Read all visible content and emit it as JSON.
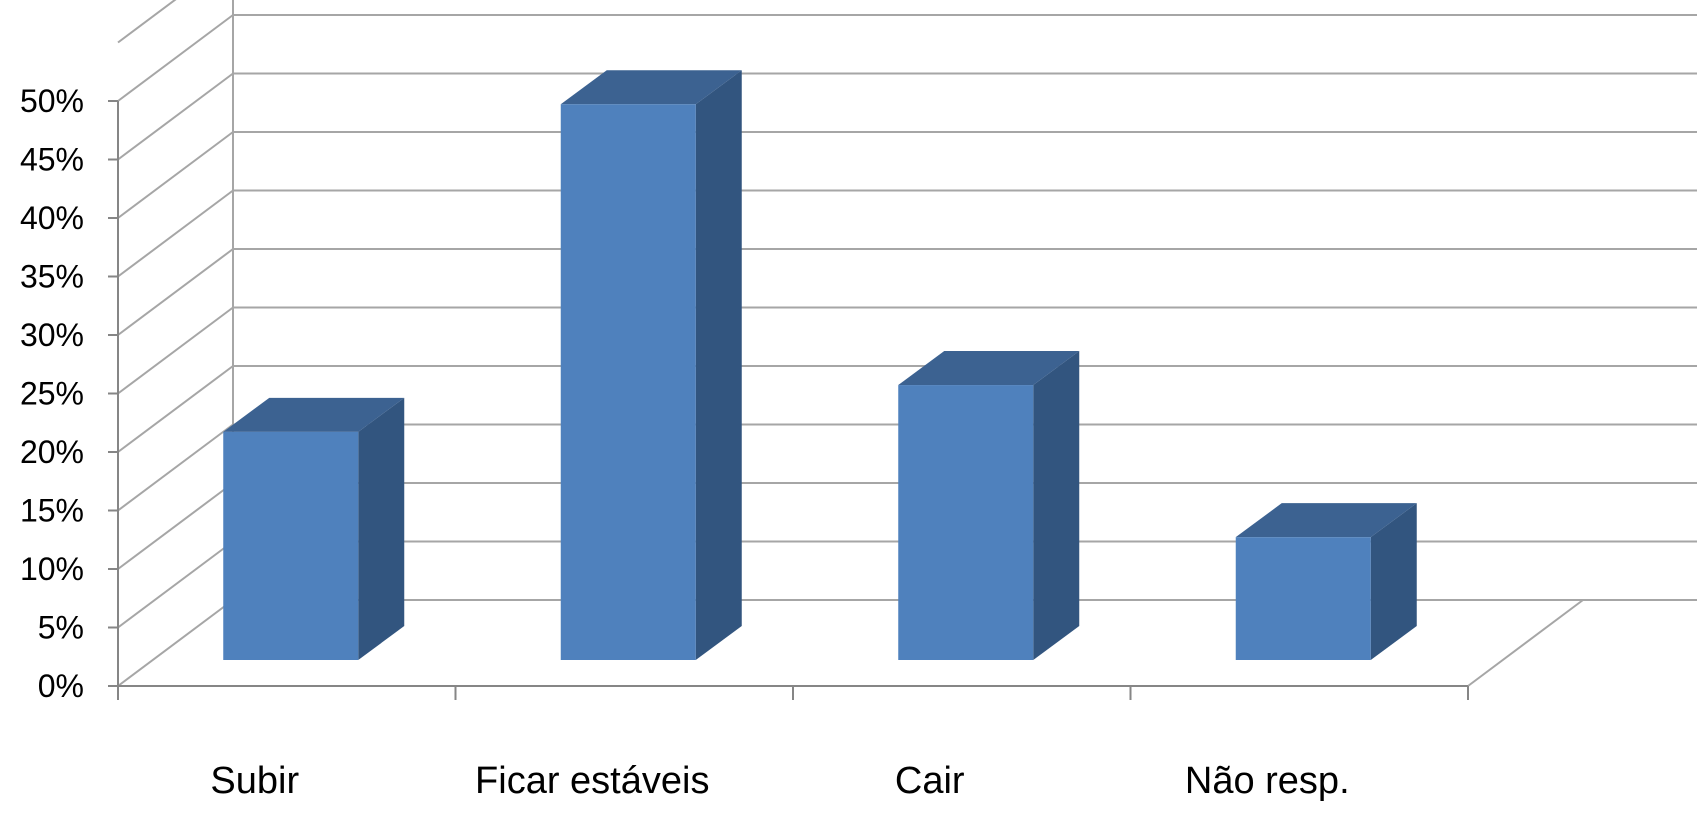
{
  "chart_data": {
    "type": "bar",
    "style": "3d-clustered-column",
    "categories": [
      "Subir",
      "Ficar estáveis",
      "Cair",
      "Não resp."
    ],
    "values": [
      19.5,
      47.5,
      23.5,
      10.5
    ],
    "unit": "%",
    "ylim": [
      0,
      50
    ],
    "ytick_step": 5,
    "yticks": [
      "0%",
      "5%",
      "10%",
      "15%",
      "20%",
      "25%",
      "30%",
      "35%",
      "40%",
      "45%",
      "50%"
    ],
    "title": "",
    "xlabel": "",
    "ylabel": "",
    "grid": true,
    "legend": "none",
    "colors": {
      "bar_front": "#4F81BD",
      "bar_top": "#3C6291",
      "bar_side": "#32557F",
      "grid": "#A6A6A6",
      "axis": "#868686"
    }
  }
}
